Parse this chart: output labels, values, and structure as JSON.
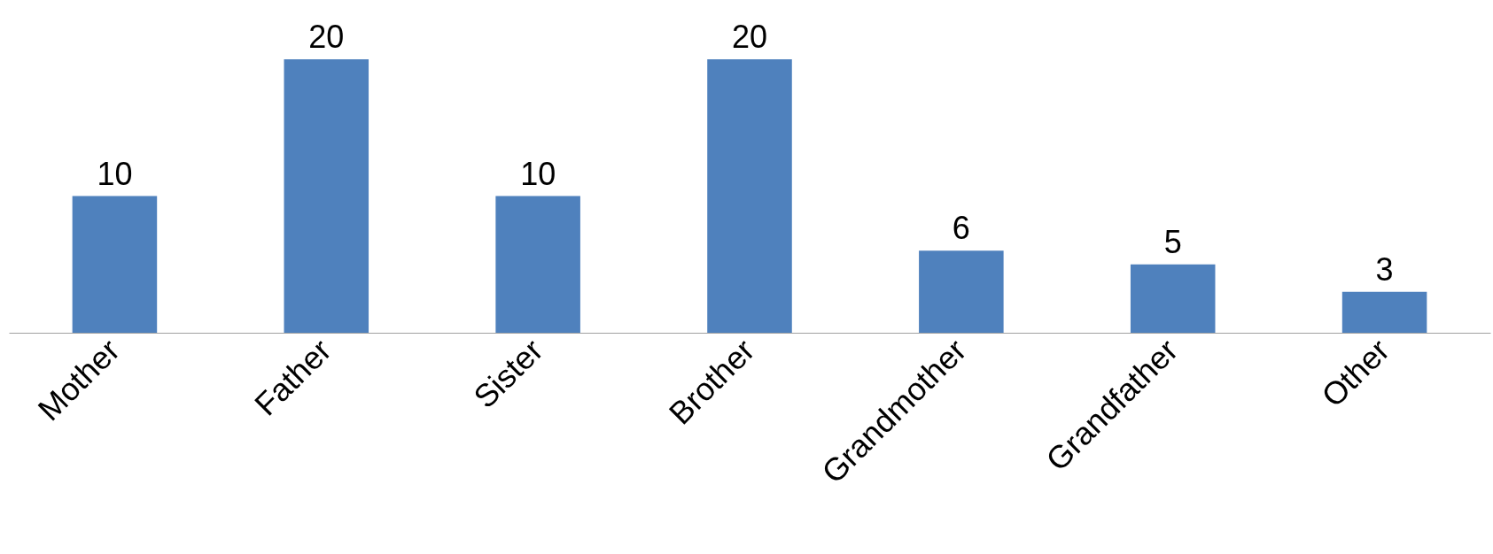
{
  "chart_data": {
    "type": "bar",
    "categories": [
      "Mother",
      "Father",
      "Sister",
      "Brother",
      "Grandmother",
      "Grandfather",
      "Other"
    ],
    "values": [
      10,
      20,
      10,
      20,
      6,
      5,
      3
    ],
    "color": "#4f81bd",
    "data_labels": true
  }
}
